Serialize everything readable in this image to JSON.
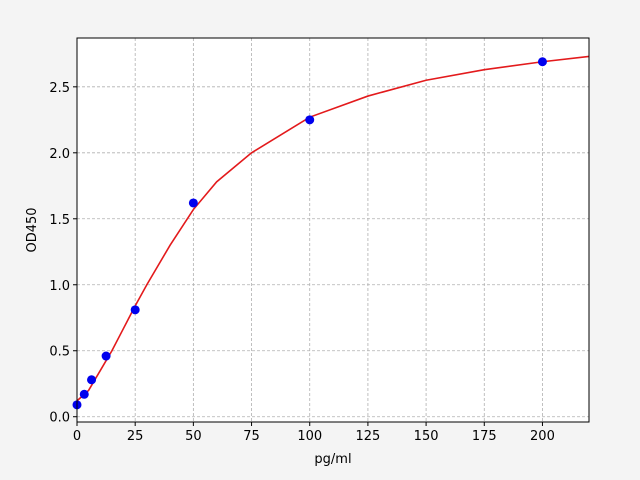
{
  "chart_data": {
    "type": "scatter",
    "x_label": "pg/ml",
    "y_label": "OD450",
    "xlim": [
      0,
      220
    ],
    "ylim": [
      -0.04,
      2.87
    ],
    "xticks": [
      0,
      25,
      50,
      75,
      100,
      125,
      150,
      175,
      200
    ],
    "yticks": [
      {
        "value": 0,
        "label": "0.0"
      },
      0.5,
      {
        "value": 1,
        "label": "1.0"
      },
      1.5,
      {
        "value": 2,
        "label": "2.0"
      },
      2.5
    ],
    "grid": true,
    "series": [
      {
        "kind": "line",
        "color": "#e31a1c",
        "x": [
          0,
          5,
          10,
          15,
          20,
          25,
          30,
          40,
          50,
          60,
          75,
          100,
          125,
          150,
          175,
          200,
          220
        ],
        "values": [
          0.12,
          0.2,
          0.35,
          0.5,
          0.67,
          0.84,
          1.0,
          1.3,
          1.57,
          1.78,
          2.0,
          2.27,
          2.43,
          2.55,
          2.63,
          2.69,
          2.73
        ]
      },
      {
        "kind": "points",
        "color": "#0000ee",
        "x": [
          0,
          3.125,
          6.25,
          12.5,
          25,
          50,
          100,
          200
        ],
        "values": [
          0.09,
          0.17,
          0.28,
          0.46,
          0.81,
          1.62,
          2.25,
          2.69
        ]
      }
    ]
  }
}
